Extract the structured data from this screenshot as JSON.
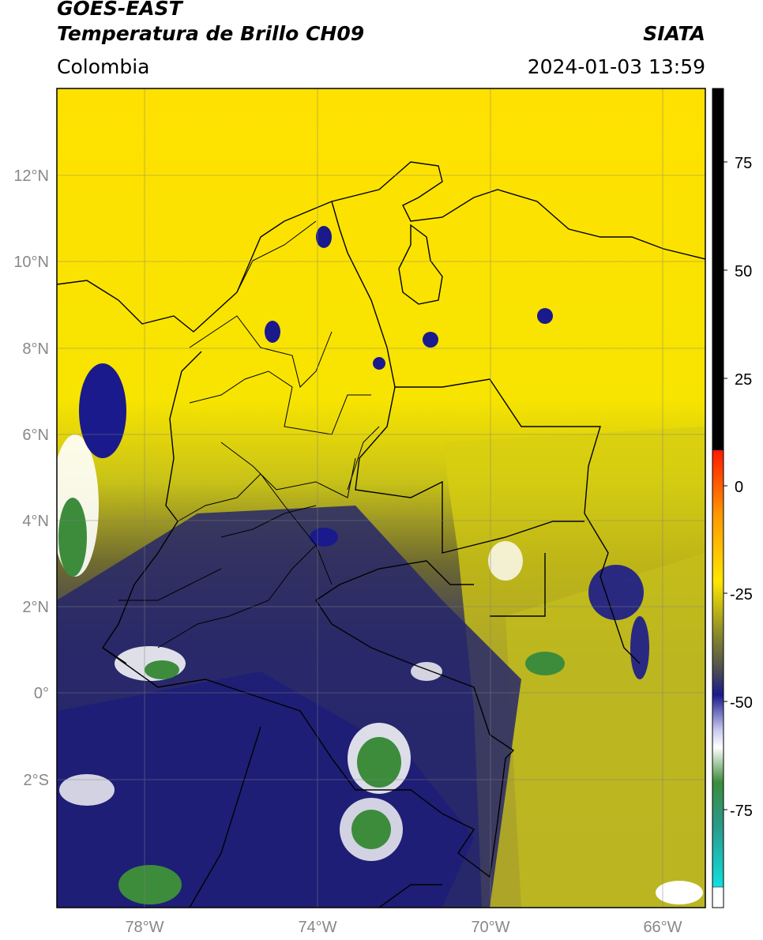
{
  "header": {
    "title_line1": "GOES-EAST",
    "title_line2": "Temperatura de Brillo CH09",
    "region": "Colombia",
    "organization": "SIATA",
    "timestamp": "2024-01-03 13:59"
  },
  "map": {
    "lon_range": [
      -80,
      -65
    ],
    "lat_range": [
      -5,
      14
    ],
    "lat_ticks": [
      "12°N",
      "10°N",
      "8°N",
      "6°N",
      "4°N",
      "2°N",
      "0°",
      "2°S"
    ],
    "lon_ticks": [
      "78°W",
      "74°W",
      "70°W",
      "66°W"
    ]
  },
  "colorbar": {
    "ticks": [
      "75",
      "50",
      "25",
      "0",
      "-25",
      "-50",
      "-75"
    ],
    "colors": {
      "black": "#000000",
      "red": "#ff1a00",
      "orange": "#ff9a00",
      "yellow": "#ffe600",
      "olive": "#8a8a2a",
      "gray": "#505050",
      "navy": "#1a1a8c",
      "white": "#ffffff",
      "green": "#3c8c3c",
      "cyan": "#10e0e0"
    }
  }
}
